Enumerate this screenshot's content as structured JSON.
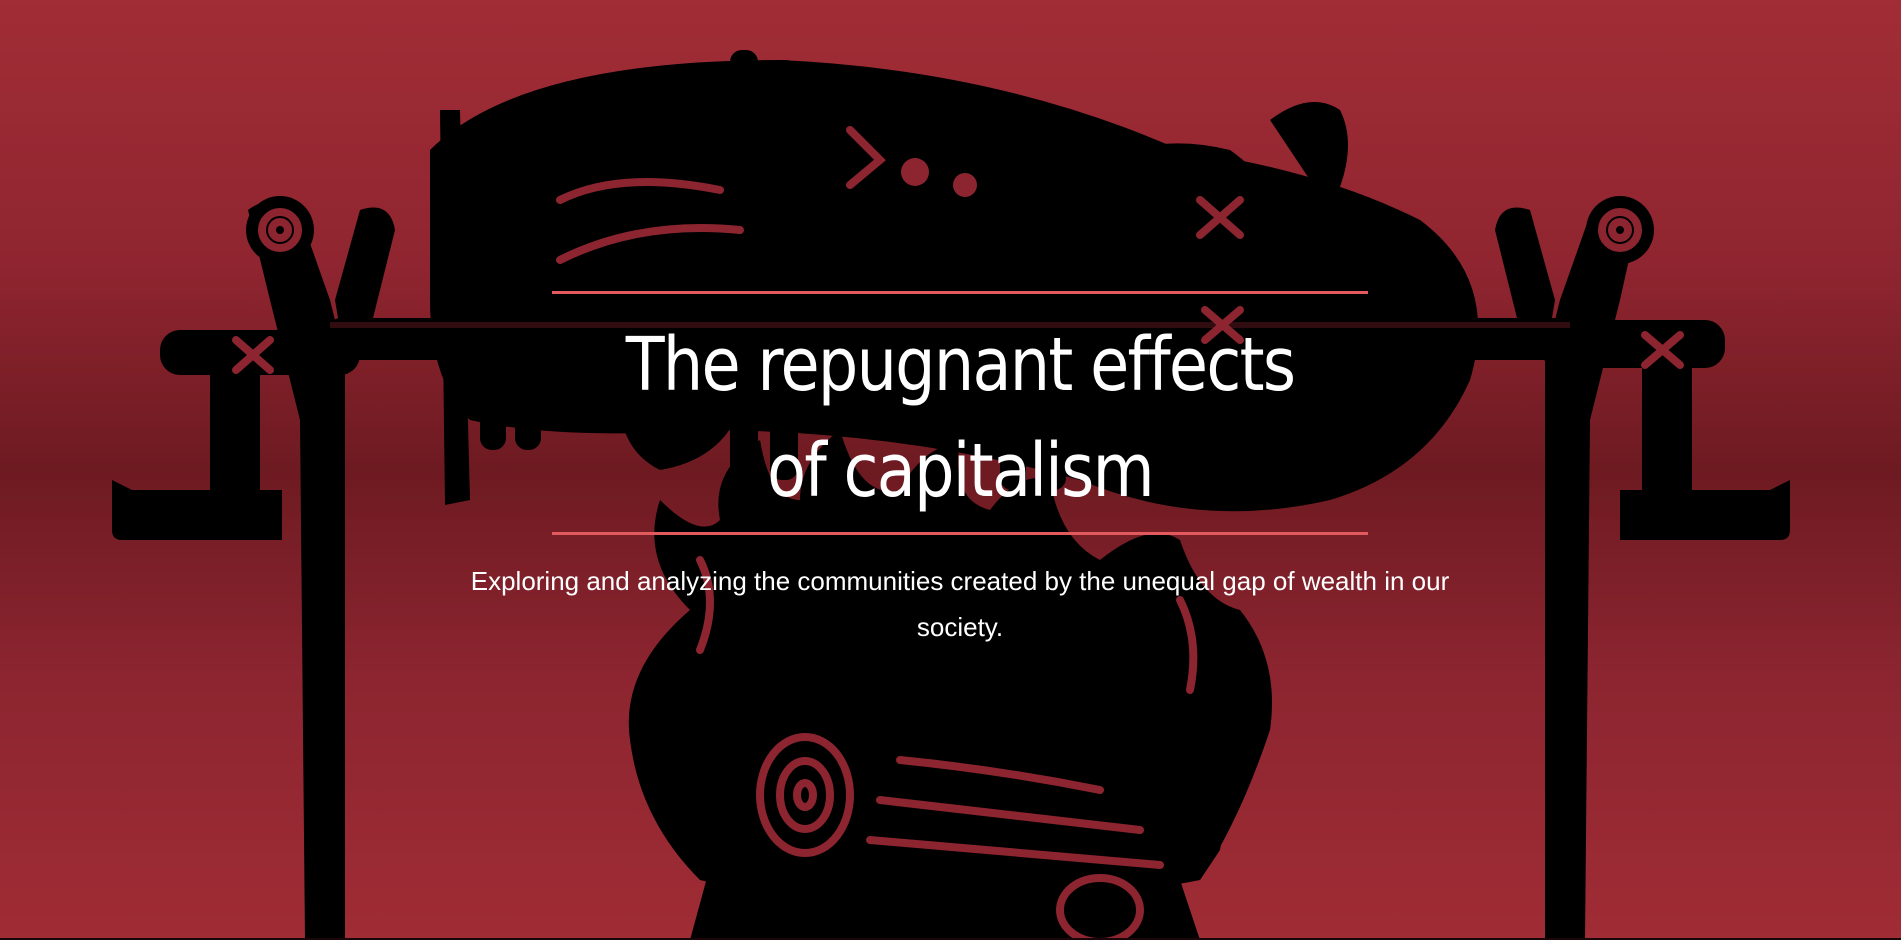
{
  "hero": {
    "title": "The repugnant effects of capitalism",
    "subtitle": "Exploring and analyzing the communities created by the unequal gap of wealth in our society.",
    "illustration": "pig-roasting-on-spit-over-campfire"
  },
  "colors": {
    "background": "#8f2530",
    "accent_rule": "#e35a5e",
    "text": "#ffffff",
    "illustration": "#000000"
  }
}
